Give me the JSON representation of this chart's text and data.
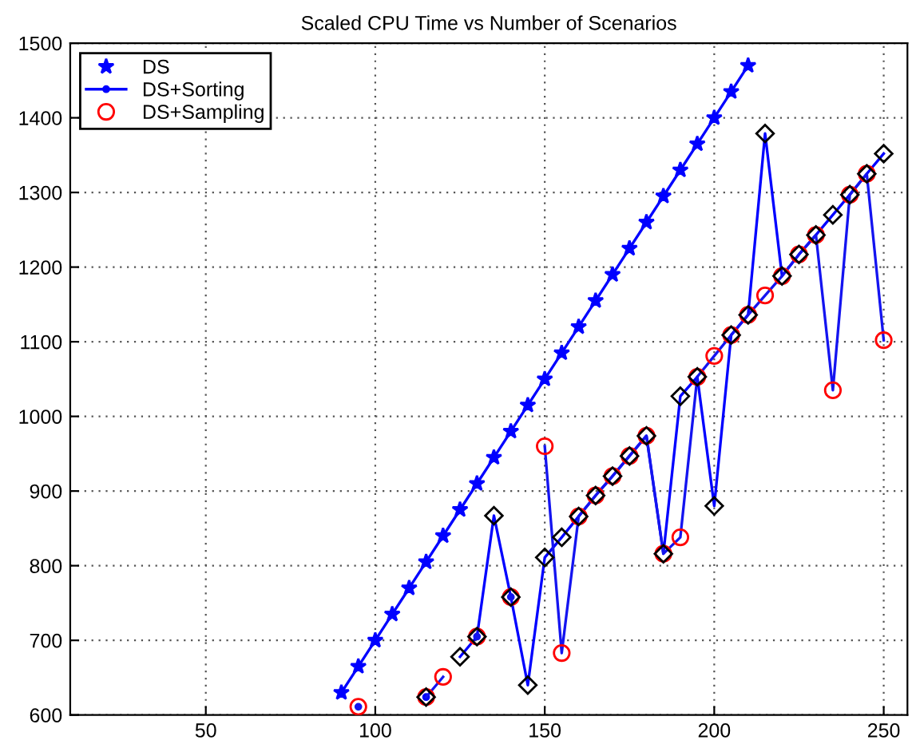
{
  "chart_data": {
    "type": "line",
    "title": "Scaled CPU Time vs Number of Scenarios",
    "xlim": [
      10,
      257
    ],
    "xticks": [
      50,
      100,
      150,
      200,
      250
    ],
    "ylim": [
      600,
      1500
    ],
    "yticks": [
      600,
      700,
      800,
      900,
      1000,
      1100,
      1200,
      1300,
      1400,
      1500
    ],
    "grid": true,
    "legend": "top left",
    "line_style": "solid",
    "series": [
      {
        "name": "DS",
        "type": "scatter",
        "marker": "star",
        "color": "#0000ff",
        "x": [
          90,
          95,
          100,
          105,
          110,
          115,
          120,
          125,
          130,
          135,
          140,
          145,
          150,
          155,
          160,
          165,
          170,
          175,
          180,
          185,
          190,
          195,
          200,
          205,
          210
        ],
        "values": [
          630,
          665,
          700,
          735,
          770,
          805,
          840,
          875,
          910,
          945,
          980,
          1015,
          1050,
          1085,
          1120,
          1155,
          1190,
          1225,
          1260,
          1295,
          1330,
          1365,
          1400,
          1435,
          1470
        ]
      },
      {
        "marker": "none",
        "color": "#0000ff",
        "x": [
          90,
          95,
          100,
          105,
          110,
          115,
          120,
          125,
          130,
          135,
          140,
          145,
          150,
          155,
          160,
          165,
          170,
          175,
          180,
          185,
          190,
          195,
          200,
          205,
          210
        ],
        "values": [
          630,
          665,
          700,
          735,
          770,
          805,
          840,
          875,
          910,
          945,
          980,
          1015,
          1050,
          1085,
          1120,
          1155,
          1190,
          1225,
          1260,
          1295,
          1330,
          1365,
          1400,
          1435,
          1470
        ]
      },
      {
        "name": "DS+Sorting",
        "marker": "none",
        "color": "#0000ff",
        "x": [
          115,
          120,
          125,
          130,
          135,
          140,
          145,
          150,
          155,
          160,
          165,
          170,
          175,
          180,
          185,
          190,
          195,
          200,
          205,
          210,
          215,
          220,
          225,
          230,
          235,
          240,
          245,
          250
        ],
        "values": [
          624,
          null,
          678,
          705,
          867,
          758,
          640,
          811,
          838,
          866,
          894,
          920,
          947,
          974,
          816,
          1027,
          1053,
          880,
          1109,
          1136,
          1379,
          1188,
          1217,
          1243,
          1270,
          1297,
          1325,
          1352
        ]
      },
      {
        "marker": "none",
        "color": "#1414f0",
        "x": [
          95,
          100,
          105,
          110,
          115,
          120,
          125,
          130,
          135,
          140,
          145,
          150,
          155,
          160,
          165,
          170,
          175,
          180,
          185,
          190,
          195,
          200,
          205,
          210,
          215,
          220,
          225,
          230,
          235,
          240,
          245,
          250
        ],
        "values": [
          611,
          null,
          null,
          null,
          624,
          651,
          null,
          705,
          null,
          758,
          null,
          960,
          683,
          866,
          894,
          920,
          947,
          974,
          816,
          838,
          1053,
          1081,
          1109,
          1136,
          1162,
          1188,
          1217,
          1243,
          1035,
          1297,
          1325,
          1102
        ]
      },
      {
        "name": "DS+Sampling",
        "type": "scatter",
        "marker": "circle",
        "color": "#ff0000",
        "x": [
          95,
          100,
          105,
          110,
          115,
          120,
          125,
          130,
          135,
          140,
          145,
          150,
          155,
          160,
          165,
          170,
          175,
          180,
          185,
          190,
          195,
          200,
          205,
          210,
          215,
          220,
          225,
          230,
          235,
          240,
          245,
          250
        ],
        "values": [
          611,
          null,
          null,
          null,
          624,
          651,
          null,
          705,
          null,
          758,
          null,
          960,
          683,
          866,
          894,
          920,
          947,
          974,
          816,
          838,
          1053,
          1081,
          1109,
          1136,
          1162,
          1188,
          1217,
          1243,
          1035,
          1297,
          1325,
          1102
        ]
      },
      {
        "type": "scatter",
        "marker": "diamond",
        "color": "#000000",
        "x": [
          115,
          120,
          125,
          130,
          135,
          140,
          145,
          150,
          155,
          160,
          165,
          170,
          175,
          180,
          185,
          190,
          195,
          200,
          205,
          210,
          215,
          220,
          225,
          230,
          235,
          240,
          245,
          250
        ],
        "values": [
          624,
          null,
          678,
          705,
          867,
          758,
          640,
          811,
          838,
          866,
          894,
          920,
          947,
          974,
          816,
          1027,
          1053,
          880,
          1109,
          1136,
          1379,
          1188,
          1217,
          1243,
          1270,
          1297,
          1325,
          1352
        ]
      }
    ]
  }
}
